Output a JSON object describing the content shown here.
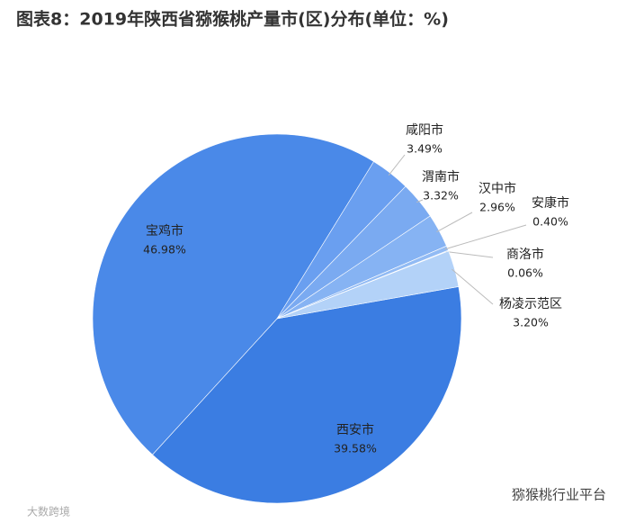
{
  "chart_data": {
    "type": "pie",
    "title": "图表8：2019年陕西省猕猴桃产量市(区)分布(单位：%)",
    "categories": [
      "西安市",
      "宝鸡市",
      "咸阳市",
      "渭南市",
      "汉中市",
      "安康市",
      "商洛市",
      "杨凌示范区"
    ],
    "values": [
      39.58,
      46.98,
      3.49,
      3.32,
      2.96,
      0.4,
      0.06,
      3.2
    ],
    "value_labels": [
      "39.58%",
      "46.98%",
      "3.49%",
      "3.32%",
      "2.96%",
      "0.40%",
      "0.06%",
      "3.20%"
    ],
    "colors": [
      "#3b7de2",
      "#4a89e8",
      "#6a9ff0",
      "#7aaaf1",
      "#86b3f3",
      "#92bbf4",
      "#9ec3f5",
      "#b3d2f8"
    ],
    "annotations": [
      "大数跨境",
      "猕猴桃行业平台"
    ]
  }
}
